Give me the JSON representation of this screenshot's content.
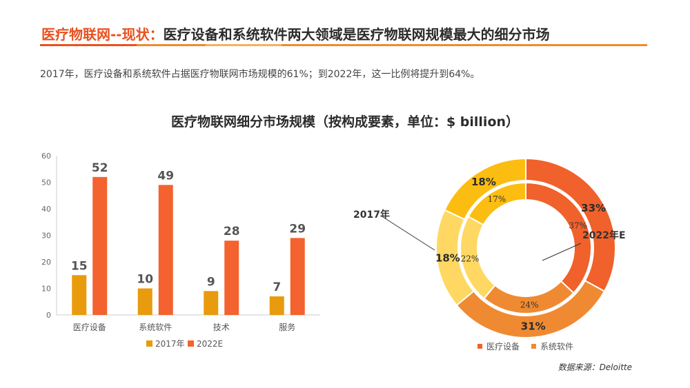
{
  "header": {
    "title_accent": "医疗物联网--现状：",
    "title_rest": "医疗设备和系统软件两大领域是医疗物联网规模最大的细分市场"
  },
  "subtitle": "2017年，医疗设备和系统软件占据医疗物联网市场规模的61%；到2022年，这一比例将提升到64%。",
  "source": "数据来源：Deloitte",
  "colors": {
    "accent": "#e8501e",
    "bar_2017": "#e89b0c",
    "bar_2022": "#f4622f",
    "donut_device": "#f0612b",
    "donut_software": "#ef8a32",
    "donut_tech": "#fed862",
    "donut_service": "#fcbd12"
  },
  "chart_data": [
    {
      "type": "bar",
      "title": "医疗物联网细分市场规模（按构成要素，单位：$ billion）",
      "categories": [
        "医疗设备",
        "系统软件",
        "技术",
        "服务"
      ],
      "series": [
        {
          "name": "2017年",
          "values": [
            15,
            10,
            9,
            7
          ]
        },
        {
          "name": "2022E",
          "values": [
            52,
            49,
            28,
            29
          ]
        }
      ],
      "ylim": [
        0,
        60
      ],
      "yticks": [
        "0",
        "10",
        "20",
        "30",
        "40",
        "50",
        "60"
      ],
      "legend_position": "bottom"
    },
    {
      "type": "pie",
      "variant": "donut-two-ring",
      "categories": [
        "医疗设备",
        "系统软件",
        "技术",
        "服务"
      ],
      "outer_ring": {
        "name": "2022年E",
        "values": [
          33,
          31,
          18,
          18
        ],
        "labels": [
          "33%",
          "31%",
          "18%",
          "18%"
        ]
      },
      "inner_ring": {
        "name": "2017年",
        "values": [
          37,
          24,
          22,
          17
        ],
        "labels": [
          "37%",
          "24%",
          "22%",
          "17%"
        ]
      },
      "legend_visible": [
        "医疗设备",
        "系统软件"
      ],
      "legend_position": "bottom",
      "annotations": [
        "2017年",
        "2022年E"
      ]
    }
  ]
}
